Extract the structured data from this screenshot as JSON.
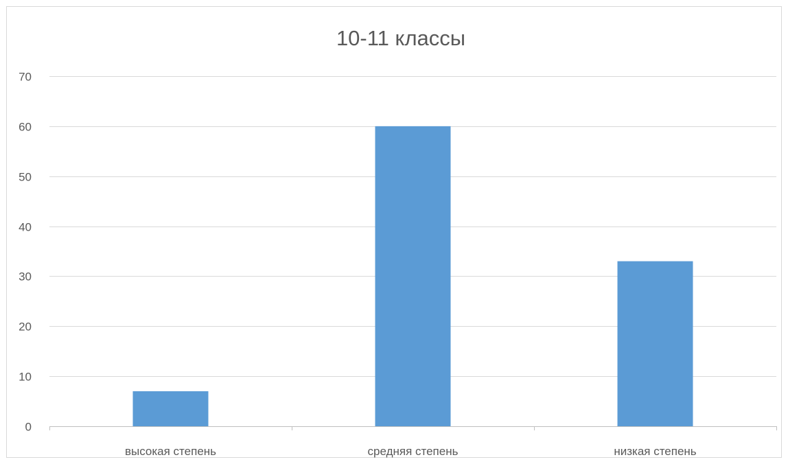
{
  "chart_data": {
    "type": "bar",
    "title": "10-11 классы",
    "categories": [
      "высокая степень",
      "средняя степень",
      "низкая степень"
    ],
    "values": [
      7,
      60,
      33
    ],
    "ylim": [
      0,
      70
    ],
    "yticks": [
      0,
      10,
      20,
      30,
      40,
      50,
      60,
      70
    ],
    "grid": true,
    "legend": "none",
    "colors": {
      "bar": "#5b9bd5",
      "grid": "#d9d9d9",
      "axis": "#bfbfbf",
      "text": "#595959"
    }
  }
}
